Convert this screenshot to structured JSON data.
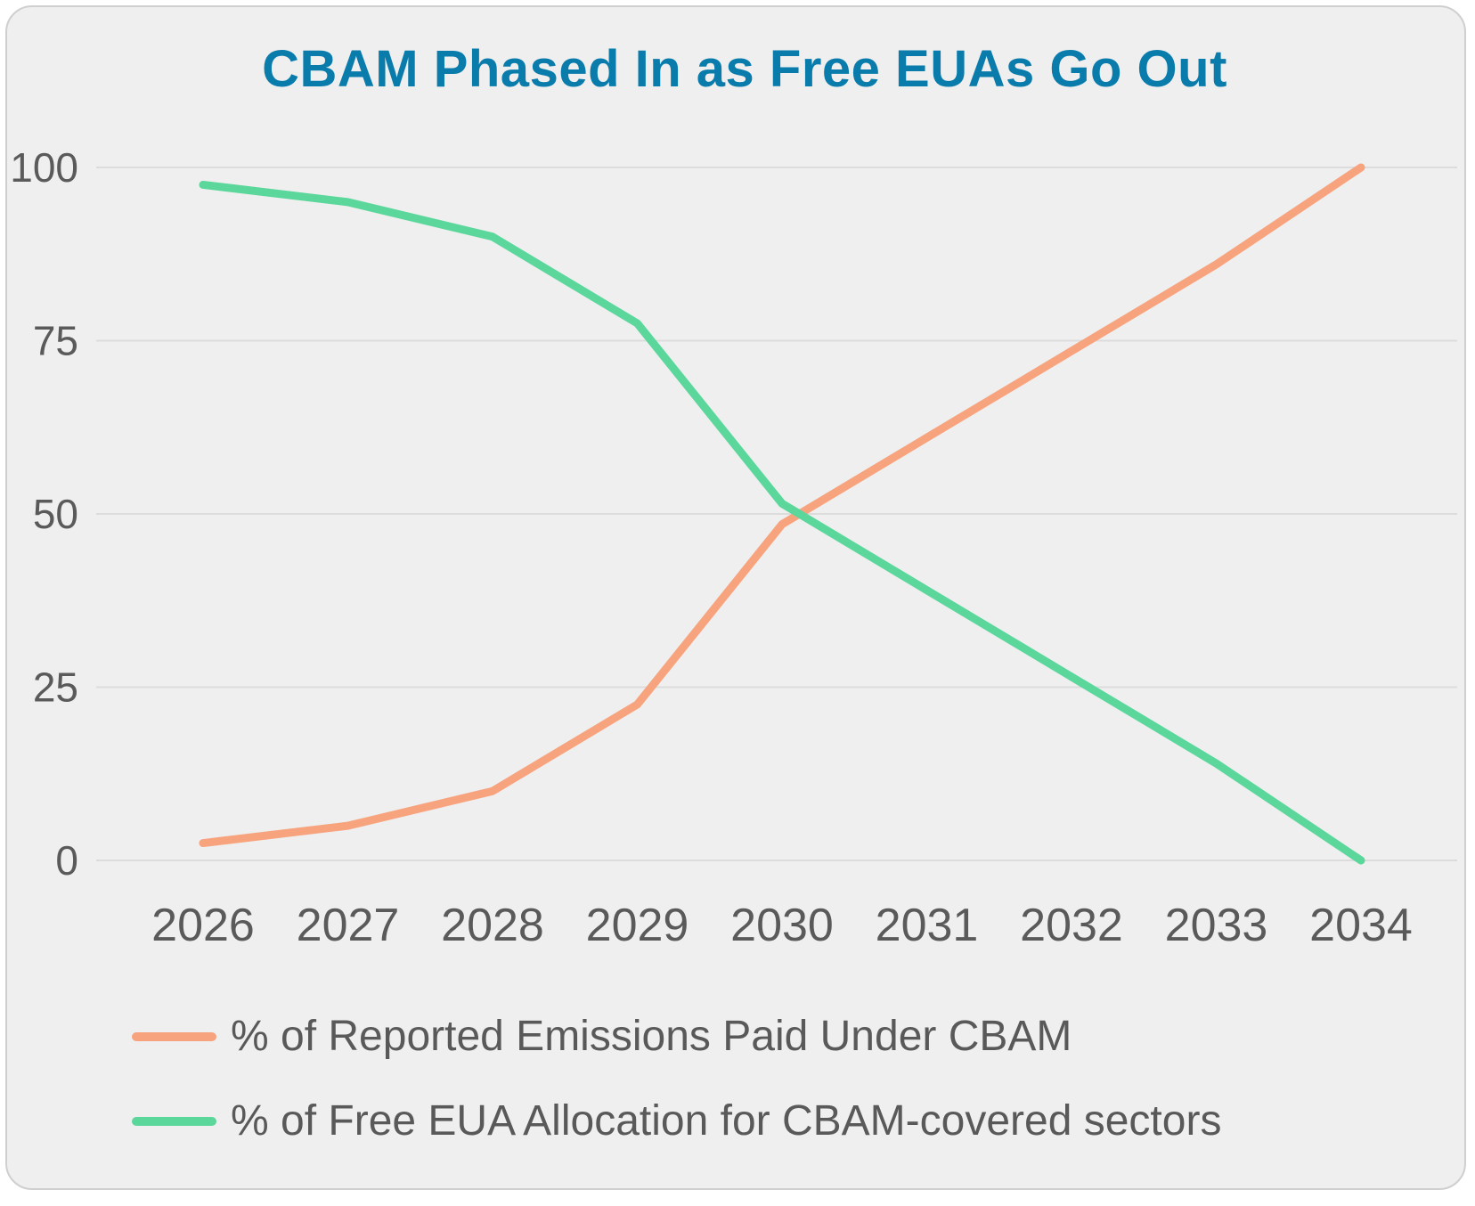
{
  "chart": {
    "title_color": "#0a7cab",
    "card_background": "#efeff0",
    "axis_text_color": "#5a5a5a",
    "gridline_color": "#dcdcdc"
  },
  "chart_data": {
    "type": "line",
    "title": "CBAM Phased In as Free EUAs Go Out",
    "x": [
      2026,
      2027,
      2028,
      2029,
      2030,
      2031,
      2032,
      2033,
      2034
    ],
    "series": [
      {
        "name": "% of Reported Emissions Paid Under CBAM",
        "color": "#f7a47e",
        "values": [
          2.5,
          5,
          10,
          22.5,
          48.5,
          61,
          73.5,
          86,
          100
        ]
      },
      {
        "name": "% of Free EUA Allocation for CBAM-covered sectors",
        "color": "#5cd79b",
        "values": [
          97.5,
          95,
          90,
          77.5,
          51.5,
          39,
          26.5,
          14,
          0
        ]
      }
    ],
    "xlabel": "",
    "ylabel": "",
    "ylim": [
      0,
      100
    ],
    "yticks": [
      0,
      25,
      50,
      75,
      100
    ],
    "grid": "horizontal",
    "legend_position": "bottom-left"
  }
}
